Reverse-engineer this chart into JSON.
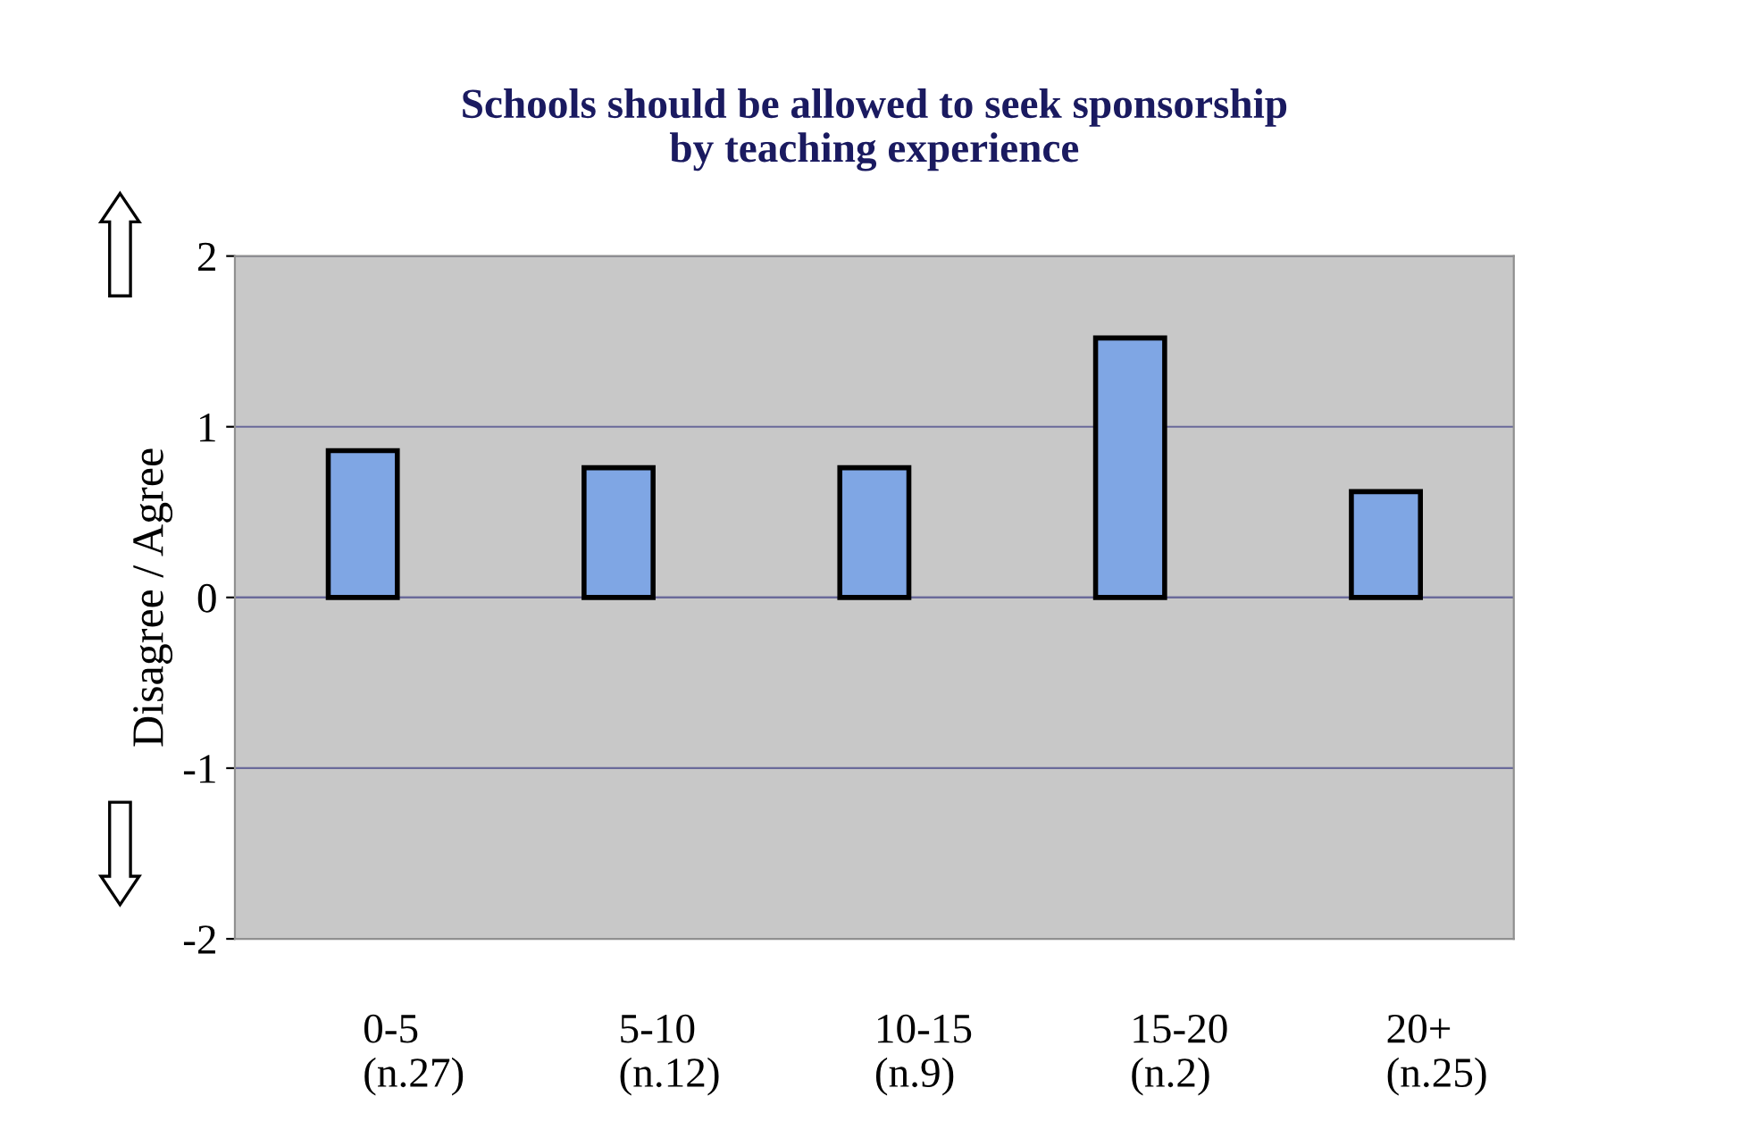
{
  "chart_data": {
    "type": "bar",
    "title": "Schools should be allowed to seek sponsorship\nby teaching experience",
    "ylabel": "Disagree / Agree",
    "categories": [
      "0-5\n(n.27)",
      "5-10\n(n.12)",
      "10-15\n(n.9)",
      "15-20\n(n.2)",
      "20+\n(n.25)"
    ],
    "values": [
      0.86,
      0.76,
      0.76,
      1.52,
      0.62
    ],
    "color": "#7fa6e4",
    "ylim": [
      -2,
      2
    ],
    "yticks": [
      -2,
      -1,
      0,
      1,
      2
    ],
    "grid": "y",
    "legend": false
  }
}
